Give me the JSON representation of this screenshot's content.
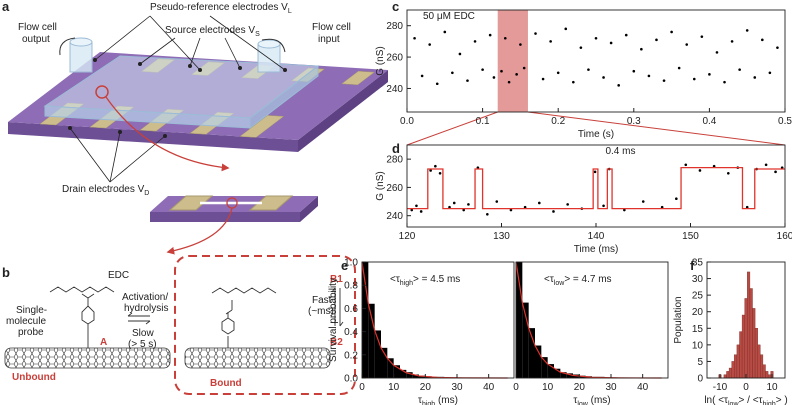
{
  "panel_labels": [
    "a",
    "b",
    "c",
    "d",
    "e",
    "f"
  ],
  "panel_a": {
    "pseudo_reference": {
      "text": "Pseudo-reference electrodes V",
      "sub": "L"
    },
    "source": {
      "text": "Source electrodes V",
      "sub": "S"
    },
    "output": [
      "Flow cell",
      "output"
    ],
    "input": [
      "Flow cell",
      "input"
    ],
    "drain": {
      "text": "Drain electrodes V",
      "sub": "D"
    }
  },
  "panel_b": {
    "edc": "EDC",
    "probe": [
      "Single-",
      "molecule",
      "probe"
    ],
    "state_a": "A",
    "unbound": "Unbound",
    "activation": [
      "Activation/",
      "hydrolysis"
    ],
    "slow": [
      "Slow",
      "(> 5 s)"
    ],
    "bound": "Bound",
    "b1": "B1",
    "b2": "B2",
    "fast": [
      "Fast",
      "(~ms)"
    ]
  },
  "chart_data": [
    {
      "type": "scatter",
      "annotation": "50 μM EDC",
      "xlabel": "Time (s)",
      "ylabel": "G (nS)",
      "color": "#000000",
      "xlim": [
        0,
        0.5
      ],
      "xticks": [
        {
          "value": 0,
          "label": "0.0"
        },
        0.1,
        0.2,
        0.3,
        0.4,
        0.5
      ],
      "ylim": [
        225,
        290
      ],
      "yticks": [
        240,
        260,
        280
      ],
      "highlight": {
        "xlim": [
          0.12,
          0.16
        ],
        "color": "#e39a98"
      },
      "x": [
        0.01,
        0.02,
        0.03,
        0.04,
        0.05,
        0.06,
        0.07,
        0.08,
        0.09,
        0.1,
        0.11,
        0.115,
        0.125,
        0.13,
        0.135,
        0.145,
        0.15,
        0.155,
        0.17,
        0.18,
        0.19,
        0.2,
        0.21,
        0.22,
        0.23,
        0.24,
        0.25,
        0.26,
        0.27,
        0.28,
        0.29,
        0.3,
        0.31,
        0.32,
        0.33,
        0.34,
        0.35,
        0.36,
        0.37,
        0.38,
        0.39,
        0.4,
        0.41,
        0.42,
        0.43,
        0.44,
        0.45,
        0.46,
        0.47,
        0.48,
        0.49
      ],
      "values": [
        272,
        248,
        268,
        243,
        276,
        250,
        262,
        245,
        270,
        252,
        274,
        247,
        251,
        272,
        244,
        249,
        268,
        253,
        275,
        246,
        270,
        250,
        278,
        244,
        266,
        252,
        272,
        247,
        269,
        242,
        274,
        251,
        265,
        248,
        271,
        245,
        276,
        253,
        268,
        246,
        273,
        249,
        263,
        244,
        270,
        252,
        277,
        247,
        271,
        250,
        266
      ]
    },
    {
      "type": "line",
      "annotation": "0.4 ms",
      "annotation_color": "#d42a24",
      "xlabel": "Time (ms)",
      "ylabel": "G (nS)",
      "xlim": [
        120,
        160
      ],
      "xticks": [
        120,
        130,
        140,
        150,
        160
      ],
      "ylim": [
        232,
        290
      ],
      "yticks": [
        240,
        260,
        280
      ],
      "series": [
        {
          "type": "scatter",
          "color": "#000000",
          "x": [
            120.5,
            121,
            121.5,
            122.5,
            123,
            123.5,
            124.5,
            125,
            126,
            126.5,
            127.5,
            128.5,
            129.5,
            131,
            132.5,
            134,
            135.5,
            137,
            138.5,
            139.9,
            140.8,
            141.4,
            143,
            145,
            147,
            148.5,
            149.5,
            151,
            152.5,
            154,
            155,
            156,
            157,
            158,
            159,
            159.7
          ],
          "values": [
            244,
            247,
            243,
            272,
            275,
            270,
            246,
            249,
            244,
            248,
            274,
            241,
            250,
            244,
            246,
            249,
            243,
            248,
            245,
            271,
            247,
            273,
            244,
            250,
            246,
            252,
            276,
            272,
            275,
            270,
            274,
            246,
            273,
            276,
            271,
            274
          ]
        },
        {
          "type": "line",
          "color": "#e0332b",
          "x": [
            120,
            122.2,
            122.2,
            123.8,
            123.8,
            127.2,
            127.2,
            128,
            128,
            139.7,
            139.7,
            140.2,
            140.2,
            141.2,
            141.2,
            141.7,
            141.7,
            149,
            149,
            155.5,
            155.5,
            156.8,
            156.8,
            160
          ],
          "values": [
            245,
            245,
            273,
            273,
            245,
            245,
            273,
            273,
            245,
            245,
            273,
            273,
            245,
            245,
            273,
            273,
            245,
            245,
            274,
            274,
            245,
            245,
            273,
            273
          ]
        }
      ]
    },
    {
      "type": "histogram",
      "annotation": [
        "<τ",
        "high",
        "> = 4.5 ms"
      ],
      "xlabel": [
        "τ",
        "high",
        " (ms)"
      ],
      "ylabel": "Survival probability",
      "color": "#000000",
      "xlim": [
        0,
        48
      ],
      "xticks": [
        0,
        10,
        20,
        30,
        40
      ],
      "ylim": [
        0,
        1
      ],
      "yticks": [
        {
          "value": 0,
          "label": "0.0"
        },
        0.2,
        0.4,
        0.6,
        0.8,
        {
          "value": 1,
          "label": "1.0"
        }
      ],
      "bins": [
        0,
        2,
        4,
        6,
        8,
        10,
        12,
        14,
        16,
        18,
        20,
        22,
        24,
        26,
        28,
        30,
        32,
        34,
        36,
        38,
        40,
        42,
        44,
        46
      ],
      "values": [
        1.0,
        0.64,
        0.41,
        0.26,
        0.17,
        0.11,
        0.07,
        0.05,
        0.03,
        0.02,
        0.015,
        0.01,
        0.01,
        0.005,
        0.005,
        0,
        0,
        0,
        0,
        0,
        0,
        0,
        0
      ],
      "fit": {
        "color": "#e0332b",
        "x": [
          0,
          2,
          4,
          6,
          8,
          10,
          14,
          18,
          24,
          32,
          46
        ],
        "values": [
          1,
          0.64,
          0.41,
          0.26,
          0.17,
          0.11,
          0.045,
          0.018,
          0.005,
          0.001,
          0
        ]
      }
    },
    {
      "type": "histogram",
      "annotation": [
        "<τ",
        "low",
        "> = 4.7 ms"
      ],
      "xlabel": [
        "τ",
        "low",
        " (ms)"
      ],
      "color": "#000000",
      "xlim": [
        0,
        48
      ],
      "xticks": [
        0,
        10,
        20,
        30,
        40
      ],
      "ylim": [
        0,
        1
      ],
      "bins": [
        0,
        2,
        4,
        6,
        8,
        10,
        12,
        14,
        16,
        18,
        20,
        22,
        24,
        26,
        28,
        30,
        32,
        34,
        36,
        38,
        40,
        42,
        44,
        46
      ],
      "values": [
        1.0,
        0.65,
        0.43,
        0.28,
        0.18,
        0.12,
        0.08,
        0.05,
        0.04,
        0.03,
        0.02,
        0.015,
        0.01,
        0.01,
        0.005,
        0.005,
        0,
        0,
        0,
        0,
        0,
        0,
        0
      ],
      "fit": {
        "color": "#e0332b",
        "x": [
          0,
          2,
          4,
          6,
          8,
          10,
          14,
          18,
          24,
          32,
          46
        ],
        "values": [
          1,
          0.65,
          0.43,
          0.28,
          0.18,
          0.12,
          0.05,
          0.022,
          0.006,
          0.001,
          0
        ]
      }
    },
    {
      "type": "histogram",
      "xlabel": [
        "ln( <τ",
        "low",
        "> / <τ",
        "high",
        "> )"
      ],
      "ylabel": "Population",
      "color": "#b84c45",
      "xlim": [
        -15,
        15
      ],
      "xticks": [
        -10,
        0,
        10
      ],
      "ylim": [
        0,
        35
      ],
      "yticks": [
        0,
        5,
        10,
        15,
        20,
        25,
        30,
        35
      ],
      "bins": [
        -10.5,
        -9.5,
        -8.5,
        -7.5,
        -6.5,
        -5.5,
        -4.5,
        -3.5,
        -2.5,
        -1.5,
        -0.5,
        0.5,
        1.5,
        2.5,
        3.5,
        4.5,
        5.5,
        6.5,
        7.5,
        8.5,
        9.5,
        10.5
      ],
      "values": [
        1,
        0,
        1,
        2,
        3,
        5,
        7,
        10,
        14,
        19,
        24,
        32,
        27,
        21,
        15,
        10,
        7,
        4,
        2,
        1,
        2
      ]
    }
  ]
}
